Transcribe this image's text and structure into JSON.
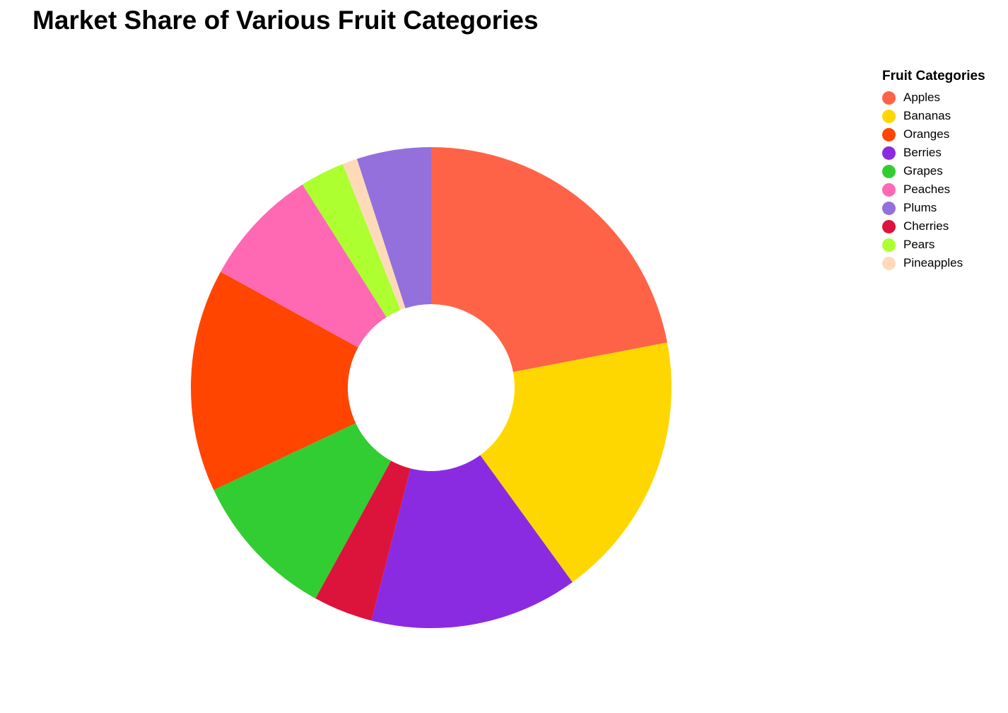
{
  "chart_data": {
    "type": "pie",
    "title": "Market Share of Various Fruit Categories",
    "legend_title": "Fruit Categories",
    "legend_position": "right",
    "donut": true,
    "categories": [
      "Apples",
      "Bananas",
      "Berries",
      "Cherries",
      "Grapes",
      "Oranges",
      "Peaches",
      "Pears",
      "Pineapples",
      "Plums"
    ],
    "values": [
      22,
      18,
      14,
      4,
      10,
      15,
      8,
      3,
      1,
      5
    ],
    "colors": [
      "#FF6347",
      "#FFD700",
      "#8A2BE2",
      "#DC143C",
      "#32CD32",
      "#FF4500",
      "#FF69B4",
      "#ADFF2F",
      "#FFDAB9",
      "#9370DB"
    ],
    "legend_order": [
      "Apples",
      "Bananas",
      "Oranges",
      "Berries",
      "Grapes",
      "Peaches",
      "Plums",
      "Cherries",
      "Pears",
      "Pineapples"
    ]
  }
}
